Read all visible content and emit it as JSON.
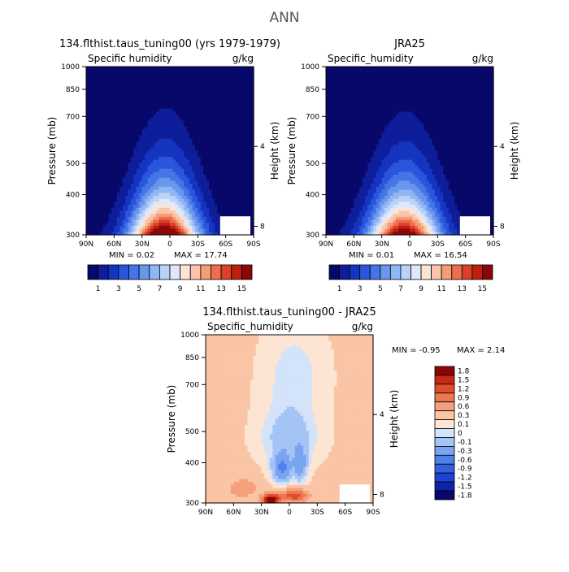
{
  "figure_title": "ANN",
  "colors": {
    "seq": [
      "#08086a",
      "#0e1e9a",
      "#1535c0",
      "#2a55dc",
      "#4575e6",
      "#6a97ee",
      "#90b6f4",
      "#b8d2f8",
      "#dde9fb",
      "#fde5d6",
      "#f9c4a8",
      "#f59d78",
      "#ec6e4c",
      "#dc4028",
      "#c01e10",
      "#8a0808"
    ],
    "diff": [
      "#08086a",
      "#0e24a8",
      "#1d42d4",
      "#3160e0",
      "#4c80ea",
      "#7aa3f0",
      "#a5c4f6",
      "#d2e3fa",
      "#fde5d4",
      "#f9c5a5",
      "#f4a07a",
      "#ed7752",
      "#e04d2e",
      "#c62a15",
      "#8c0505"
    ]
  },
  "chart_data": [
    {
      "type": "heatmap",
      "title": "134.flthist.taus_tuning00 (yrs 1979-1979)",
      "subtitle_left": "Specific humidity",
      "units": "g/kg",
      "ylabel": "Pressure (mb)",
      "ylabel_right": "Height (km)",
      "x_ticks": [
        "90N",
        "60N",
        "30N",
        "0",
        "30S",
        "60S",
        "90S"
      ],
      "y_ticks": [
        300,
        400,
        500,
        700,
        850,
        1000
      ],
      "y_right_ticks": [
        8,
        4
      ],
      "ylim": [
        1000,
        300
      ],
      "xlim": [
        90,
        -90
      ],
      "min_label": "MIN =   0.02",
      "max_label": "MAX =  17.74",
      "min": 0.02,
      "max": 17.74,
      "colorbar_labels": [
        "1",
        "3",
        "5",
        "7",
        "9",
        "11",
        "13",
        "15"
      ],
      "colorbar_levels": [
        1,
        2,
        3,
        4,
        5,
        6,
        7,
        8,
        9,
        10,
        11,
        12,
        13,
        14,
        15
      ]
    },
    {
      "type": "heatmap",
      "title": "JRA25",
      "subtitle_left": "Specific_humidity",
      "units": "g/kg",
      "ylabel": "Pressure (mb)",
      "ylabel_right": "Height (km)",
      "x_ticks": [
        "90N",
        "60N",
        "30N",
        "0",
        "30S",
        "60S",
        "90S"
      ],
      "y_ticks": [
        300,
        400,
        500,
        700,
        850,
        1000
      ],
      "y_right_ticks": [
        8,
        4
      ],
      "ylim": [
        1000,
        300
      ],
      "xlim": [
        90,
        -90
      ],
      "min_label": "MIN =   0.01",
      "max_label": "MAX =  16.54",
      "min": 0.01,
      "max": 16.54,
      "colorbar_labels": [
        "1",
        "3",
        "5",
        "7",
        "9",
        "11",
        "13",
        "15"
      ],
      "colorbar_levels": [
        1,
        2,
        3,
        4,
        5,
        6,
        7,
        8,
        9,
        10,
        11,
        12,
        13,
        14,
        15
      ]
    },
    {
      "type": "heatmap",
      "title": "134.flthist.taus_tuning00 - JRA25",
      "subtitle_left": "Specific_humidity",
      "units": "g/kg",
      "ylabel": "Pressure (mb)",
      "ylabel_right": "Height (km)",
      "x_ticks": [
        "90N",
        "60N",
        "30N",
        "0",
        "30S",
        "60S",
        "90S"
      ],
      "y_ticks": [
        300,
        400,
        500,
        700,
        850,
        1000
      ],
      "y_right_ticks": [
        8,
        4
      ],
      "ylim": [
        1000,
        300
      ],
      "xlim": [
        90,
        -90
      ],
      "min_label": "MIN =   -0.95",
      "max_label": "MAX =    2.14",
      "min": -0.95,
      "max": 2.14,
      "colorbar_labels": [
        "1.8",
        "1.5",
        "1.2",
        "0.9",
        "0.6",
        "0.3",
        "0.1",
        "0",
        "-0.1",
        "-0.3",
        "-0.6",
        "-0.9",
        "-1.2",
        "-1.5",
        "-1.8"
      ],
      "colorbar_levels": [
        -1.8,
        -1.5,
        -1.2,
        -0.9,
        -0.6,
        -0.3,
        -0.1,
        0,
        0.1,
        0.3,
        0.6,
        0.9,
        1.2,
        1.5,
        1.8
      ]
    }
  ]
}
